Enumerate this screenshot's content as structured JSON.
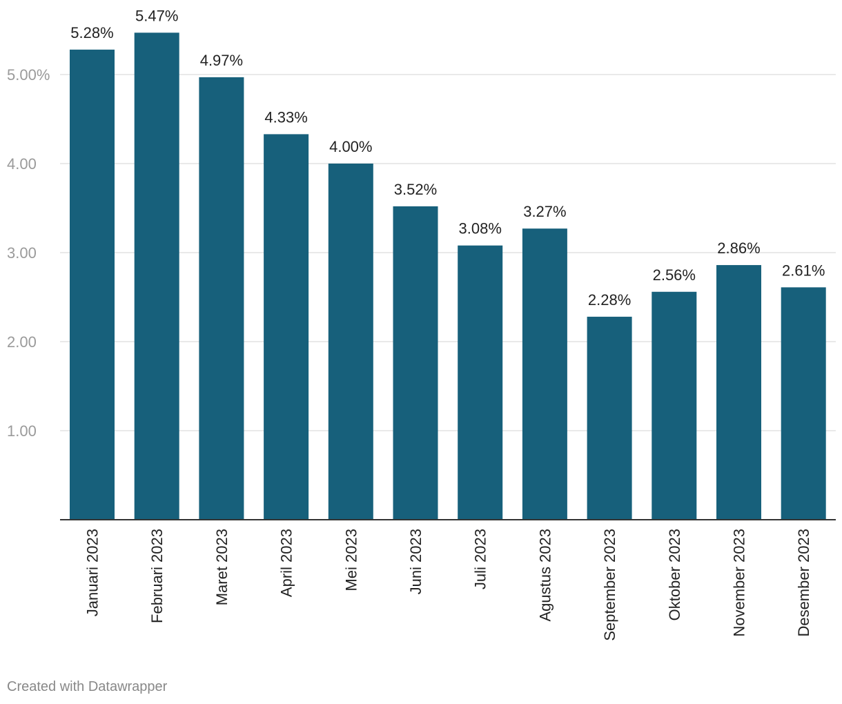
{
  "chart_data": {
    "type": "bar",
    "title": "",
    "xlabel": "",
    "ylabel": "",
    "categories": [
      "Januari 2023",
      "Februari 2023",
      "Maret 2023",
      "April 2023",
      "Mei 2023",
      "Juni 2023",
      "Juli 2023",
      "Agustus 2023",
      "September 2023",
      "Oktober 2023",
      "November 2023",
      "Desember 2023"
    ],
    "values": [
      5.28,
      5.47,
      4.97,
      4.33,
      4.0,
      3.52,
      3.08,
      3.27,
      2.28,
      2.56,
      2.86,
      2.61
    ],
    "value_labels": [
      "5.28%",
      "5.47%",
      "4.97%",
      "4.33%",
      "4.00%",
      "3.52%",
      "3.08%",
      "3.27%",
      "2.28%",
      "2.56%",
      "2.86%",
      "2.61%"
    ],
    "ylim": [
      0,
      5.47
    ],
    "yticks": [
      1,
      2,
      3,
      4,
      5
    ],
    "ytick_labels": [
      "1.00",
      "2.00",
      "3.00",
      "4.00",
      "5.00%"
    ],
    "grid": true,
    "legend": "none",
    "bar_color": "#17607b"
  },
  "footer": {
    "credit": "Created with Datawrapper"
  }
}
